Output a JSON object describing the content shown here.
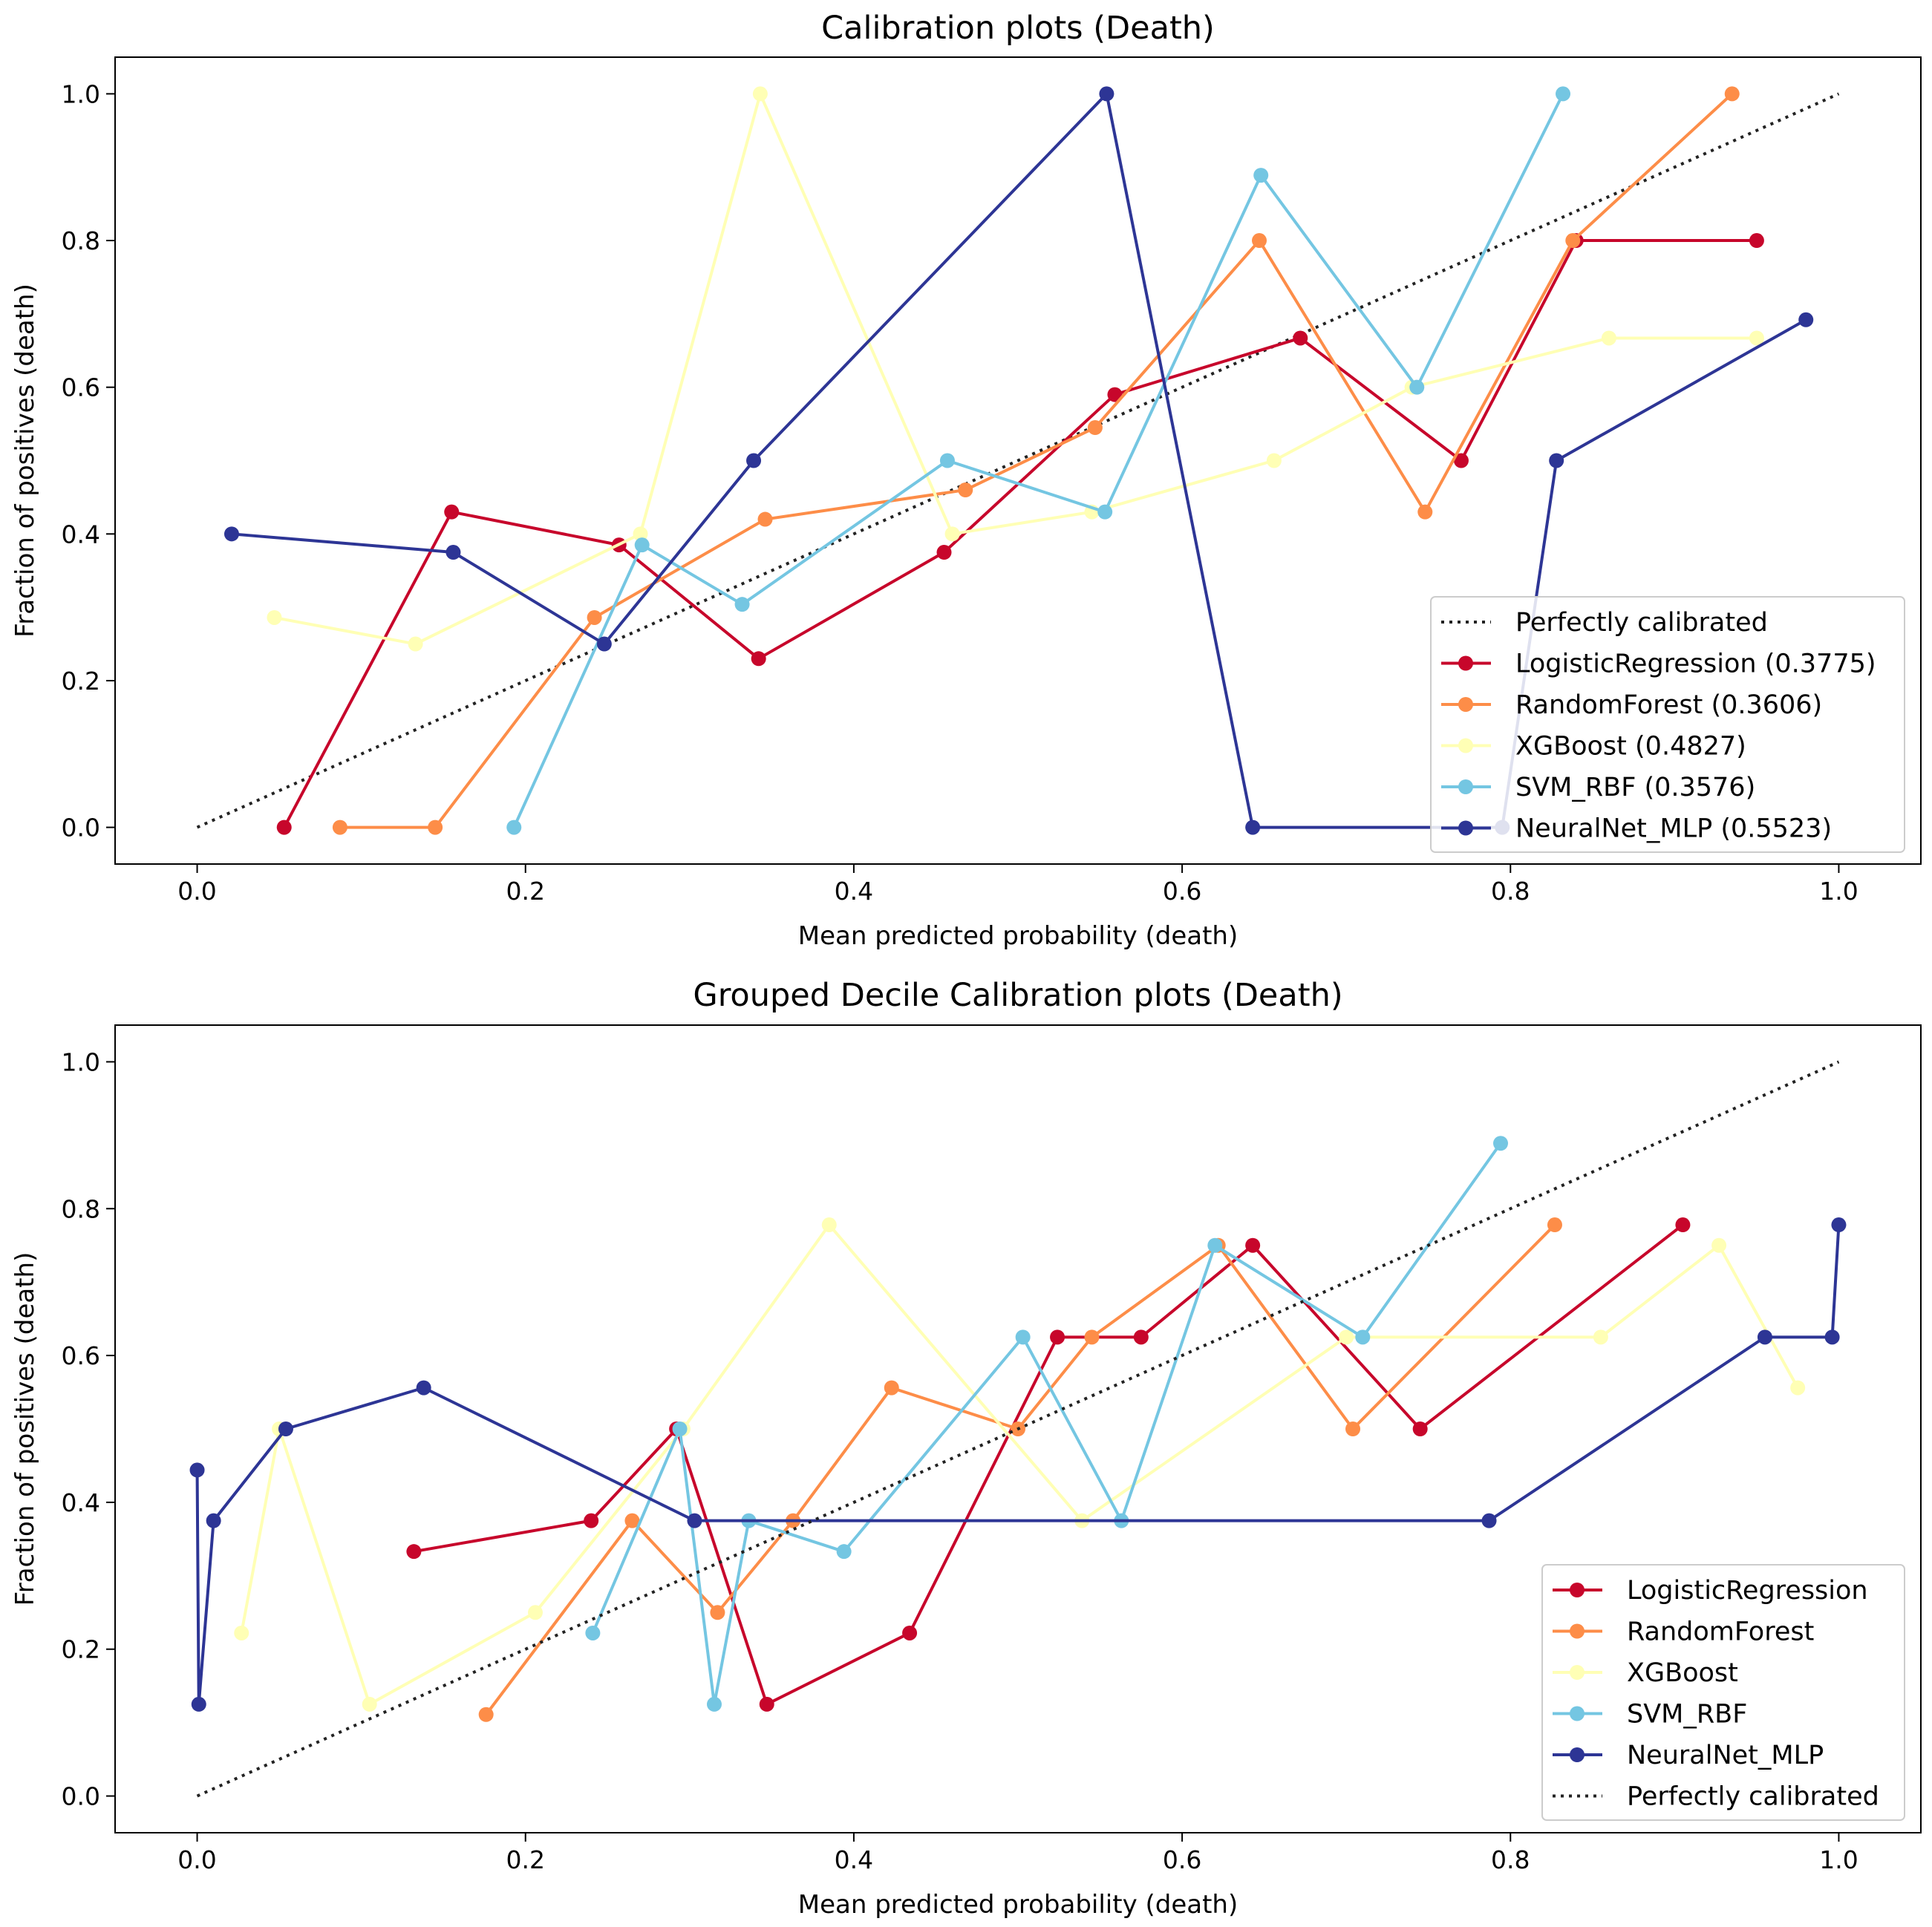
{
  "colors": {
    "LogisticRegression": "#c7062b",
    "RandomForest": "#fd8d48",
    "XGBoost": "#ffffb5",
    "SVM_RBF": "#74c6e2",
    "NeuralNet_MLP": "#2d3595",
    "perfect": "#222222"
  },
  "chart_data": [
    {
      "type": "line",
      "title": "Calibration plots (Death)",
      "xlabel": "Mean predicted probability (death)",
      "ylabel": "Fraction of positives (death)",
      "xlim": [
        -0.05,
        1.05
      ],
      "ylim": [
        -0.05,
        1.05
      ],
      "xticks": [
        "0.0",
        "0.2",
        "0.4",
        "0.6",
        "0.8",
        "1.0"
      ],
      "yticks": [
        "0.0",
        "0.2",
        "0.4",
        "0.6",
        "0.8",
        "1.0"
      ],
      "legend_position": "lower-right",
      "perfect_first": true,
      "perfect_label": "Perfectly calibrated",
      "series": [
        {
          "key": "LogisticRegression",
          "name": "LogisticRegression (0.3775)",
          "x": [
            0.053,
            0.155,
            0.257,
            0.342,
            0.455,
            0.559,
            0.672,
            0.77,
            0.84,
            0.95
          ],
          "y": [
            0,
            0.43,
            0.385,
            0.23,
            0.375,
            0.59,
            0.667,
            0.5,
            0.8,
            0.8
          ]
        },
        {
          "key": "RandomForest",
          "name": "RandomForest (0.3606)",
          "x": [
            0.087,
            0.145,
            0.242,
            0.346,
            0.468,
            0.547,
            0.647,
            0.748,
            0.838,
            0.935
          ],
          "y": [
            0,
            0,
            0.286,
            0.42,
            0.46,
            0.545,
            0.8,
            0.43,
            0.8,
            1.0
          ]
        },
        {
          "key": "XGBoost",
          "name": "XGBoost (0.4827)",
          "x": [
            0.047,
            0.133,
            0.27,
            0.343,
            0.46,
            0.545,
            0.656,
            0.74,
            0.86,
            0.95
          ],
          "y": [
            0.286,
            0.25,
            0.4,
            1.0,
            0.4,
            0.43,
            0.5,
            0.6,
            0.667,
            0.667
          ]
        },
        {
          "key": "SVM_RBF",
          "name": "SVM_RBF (0.3576)",
          "x": [
            0.193,
            0.271,
            0.332,
            0.457,
            0.553,
            0.648,
            0.743,
            0.832
          ],
          "y": [
            0,
            0.385,
            0.304,
            0.5,
            0.43,
            0.889,
            0.6,
            1.0
          ]
        },
        {
          "key": "NeuralNet_MLP",
          "name": "NeuralNet_MLP (0.5523)",
          "x": [
            0.021,
            0.156,
            0.248,
            0.339,
            0.554,
            0.643,
            0.795,
            0.828,
            0.98
          ],
          "y": [
            0.4,
            0.375,
            0.25,
            0.5,
            1.0,
            0,
            0,
            0.5,
            0.692
          ]
        }
      ]
    },
    {
      "type": "line",
      "title": "Grouped Decile Calibration plots (Death)",
      "xlabel": "Mean predicted probability (death)",
      "ylabel": "Fraction of positives (death)",
      "xlim": [
        -0.05,
        1.05
      ],
      "ylim": [
        -0.05,
        1.05
      ],
      "xticks": [
        "0.0",
        "0.2",
        "0.4",
        "0.6",
        "0.8",
        "1.0"
      ],
      "yticks": [
        "0.0",
        "0.2",
        "0.4",
        "0.6",
        "0.8",
        "1.0"
      ],
      "legend_position": "lower-right",
      "perfect_first": false,
      "perfect_label": "Perfectly calibrated",
      "series": [
        {
          "key": "LogisticRegression",
          "name": "LogisticRegression",
          "x": [
            0.132,
            0.24,
            0.292,
            0.347,
            0.434,
            0.524,
            0.575,
            0.643,
            0.745,
            0.905
          ],
          "y": [
            0.333,
            0.375,
            0.5,
            0.125,
            0.222,
            0.625,
            0.625,
            0.75,
            0.5,
            0.778
          ]
        },
        {
          "key": "RandomForest",
          "name": "RandomForest",
          "x": [
            0.176,
            0.265,
            0.317,
            0.363,
            0.423,
            0.5,
            0.545,
            0.622,
            0.704,
            0.827
          ],
          "y": [
            0.111,
            0.375,
            0.25,
            0.375,
            0.556,
            0.5,
            0.625,
            0.75,
            0.5,
            0.778
          ]
        },
        {
          "key": "XGBoost",
          "name": "XGBoost",
          "x": [
            0.027,
            0.05,
            0.105,
            0.206,
            0.296,
            0.385,
            0.539,
            0.7,
            0.855,
            0.927,
            0.975
          ],
          "y": [
            0.222,
            0.5,
            0.125,
            0.25,
            0.5,
            0.778,
            0.375,
            0.625,
            0.625,
            0.75,
            0.556
          ]
        },
        {
          "key": "SVM_RBF",
          "name": "SVM_RBF",
          "x": [
            0.241,
            0.294,
            0.315,
            0.336,
            0.394,
            0.503,
            0.563,
            0.62,
            0.71,
            0.794
          ],
          "y": [
            0.222,
            0.5,
            0.125,
            0.375,
            0.333,
            0.625,
            0.375,
            0.75,
            0.625,
            0.889
          ]
        },
        {
          "key": "NeuralNet_MLP",
          "name": "NeuralNet_MLP",
          "x": [
            0.0,
            0.001,
            0.01,
            0.054,
            0.138,
            0.303,
            0.787,
            0.955,
            0.996,
            1.0
          ],
          "y": [
            0.444,
            0.125,
            0.375,
            0.5,
            0.556,
            0.375,
            0.375,
            0.625,
            0.625,
            0.778
          ]
        }
      ]
    }
  ]
}
